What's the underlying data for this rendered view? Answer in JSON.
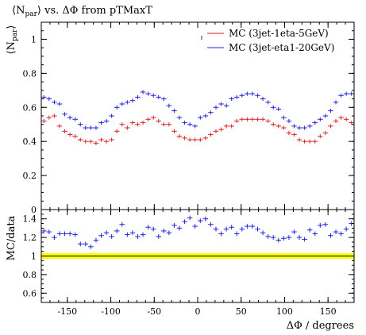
{
  "chart_data": [
    {
      "type": "scatter",
      "title": "⟨N_par⟩ vs. ΔΦ from pTMaxT",
      "title_parts": {
        "pre": "⟨N",
        "sub": "par",
        "post": "⟩ vs. ΔΦ from pTMaxT"
      },
      "ylabel": "⟨N_par⟩",
      "ylabel_parts": {
        "pre": "⟨N",
        "sub": "par",
        "post": "⟩"
      },
      "xlim": [
        -180,
        180
      ],
      "ylim": [
        0,
        1.1
      ],
      "yticks": [
        0,
        0.2,
        0.4,
        0.6,
        0.8,
        1
      ],
      "ytick_labels": [
        "0",
        "0.2",
        "0.4",
        "0.6",
        "0.8",
        "1"
      ],
      "legend_position": "top-right",
      "x": [
        -177,
        -171,
        -165,
        -159,
        -153,
        -147,
        -141,
        -135,
        -129,
        -123,
        -117,
        -111,
        -105,
        -99,
        -93,
        -87,
        -81,
        -75,
        -69,
        -63,
        -57,
        -51,
        -45,
        -39,
        -33,
        -27,
        -21,
        -15,
        -9,
        -3,
        3,
        9,
        15,
        21,
        27,
        33,
        39,
        45,
        51,
        57,
        63,
        69,
        75,
        81,
        87,
        93,
        99,
        105,
        111,
        117,
        123,
        129,
        135,
        141,
        147,
        153,
        159,
        165,
        171,
        177
      ],
      "series": [
        {
          "name": "MC (3jet-1eta-5GeV)",
          "color": "#dd2222",
          "values": [
            0.52,
            0.54,
            0.55,
            0.49,
            0.46,
            0.44,
            0.43,
            0.41,
            0.4,
            0.4,
            0.39,
            0.41,
            0.4,
            0.41,
            0.46,
            0.5,
            0.48,
            0.51,
            0.5,
            0.51,
            0.53,
            0.54,
            0.52,
            0.5,
            0.5,
            0.46,
            0.43,
            0.42,
            0.41,
            0.41,
            0.41,
            0.42,
            0.44,
            0.46,
            0.47,
            0.49,
            0.49,
            0.52,
            0.53,
            0.53,
            0.53,
            0.53,
            0.53,
            0.52,
            0.5,
            0.49,
            0.48,
            0.45,
            0.44,
            0.41,
            0.4,
            0.4,
            0.4,
            0.43,
            0.45,
            0.49,
            0.52,
            0.54,
            0.53,
            0.51
          ]
        },
        {
          "name": "MC (3jet-eta1-20GeV)",
          "color": "#2222dd",
          "values": [
            0.66,
            0.65,
            0.63,
            0.62,
            0.56,
            0.54,
            0.53,
            0.5,
            0.48,
            0.48,
            0.48,
            0.51,
            0.52,
            0.55,
            0.6,
            0.62,
            0.63,
            0.64,
            0.66,
            0.69,
            0.68,
            0.67,
            0.66,
            0.65,
            0.61,
            0.58,
            0.54,
            0.51,
            0.5,
            0.49,
            0.54,
            0.55,
            0.57,
            0.6,
            0.62,
            0.61,
            0.65,
            0.66,
            0.67,
            0.68,
            0.68,
            0.67,
            0.65,
            0.63,
            0.6,
            0.59,
            0.54,
            0.52,
            0.49,
            0.48,
            0.48,
            0.49,
            0.51,
            0.53,
            0.55,
            0.58,
            0.63,
            0.67,
            0.68,
            0.68
          ]
        }
      ]
    },
    {
      "type": "scatter",
      "ylabel": "MC/data",
      "xlabel": "ΔΦ / degrees",
      "xlim": [
        -180,
        180
      ],
      "ylim": [
        0.5,
        1.5
      ],
      "xticks": [
        -150,
        -100,
        -50,
        0,
        50,
        100,
        150
      ],
      "xtick_labels": [
        "-150",
        "-100",
        "-50",
        "0",
        "50",
        "100",
        "150"
      ],
      "yticks": [
        0.6,
        0.8,
        1,
        1.2,
        1.4
      ],
      "ytick_labels": [
        "0.6",
        "0.8",
        "1",
        "1.2",
        "1.4"
      ],
      "reference_line": 1,
      "reference_band_color": "#ffff00",
      "x": [
        -177,
        -171,
        -165,
        -159,
        -153,
        -147,
        -141,
        -135,
        -129,
        -123,
        -117,
        -111,
        -105,
        -99,
        -93,
        -87,
        -81,
        -75,
        -69,
        -63,
        -57,
        -51,
        -45,
        -39,
        -33,
        -27,
        -21,
        -15,
        -9,
        -3,
        3,
        9,
        15,
        21,
        27,
        33,
        39,
        45,
        51,
        57,
        63,
        69,
        75,
        81,
        87,
        93,
        99,
        105,
        111,
        117,
        123,
        129,
        135,
        141,
        147,
        153,
        159,
        165,
        171,
        177
      ],
      "series": [
        {
          "color": "#2222dd",
          "values": [
            1.27,
            1.26,
            1.2,
            1.24,
            1.24,
            1.24,
            1.23,
            1.13,
            1.13,
            1.1,
            1.17,
            1.22,
            1.25,
            1.21,
            1.27,
            1.34,
            1.23,
            1.25,
            1.21,
            1.23,
            1.31,
            1.29,
            1.21,
            1.27,
            1.25,
            1.33,
            1.3,
            1.37,
            1.41,
            1.32,
            1.38,
            1.4,
            1.34,
            1.29,
            1.24,
            1.29,
            1.31,
            1.24,
            1.29,
            1.32,
            1.32,
            1.29,
            1.25,
            1.21,
            1.2,
            1.17,
            1.19,
            1.2,
            1.26,
            1.2,
            1.18,
            1.28,
            1.24,
            1.33,
            1.34,
            1.22,
            1.26,
            1.24,
            1.29,
            1.35
          ]
        }
      ]
    }
  ]
}
